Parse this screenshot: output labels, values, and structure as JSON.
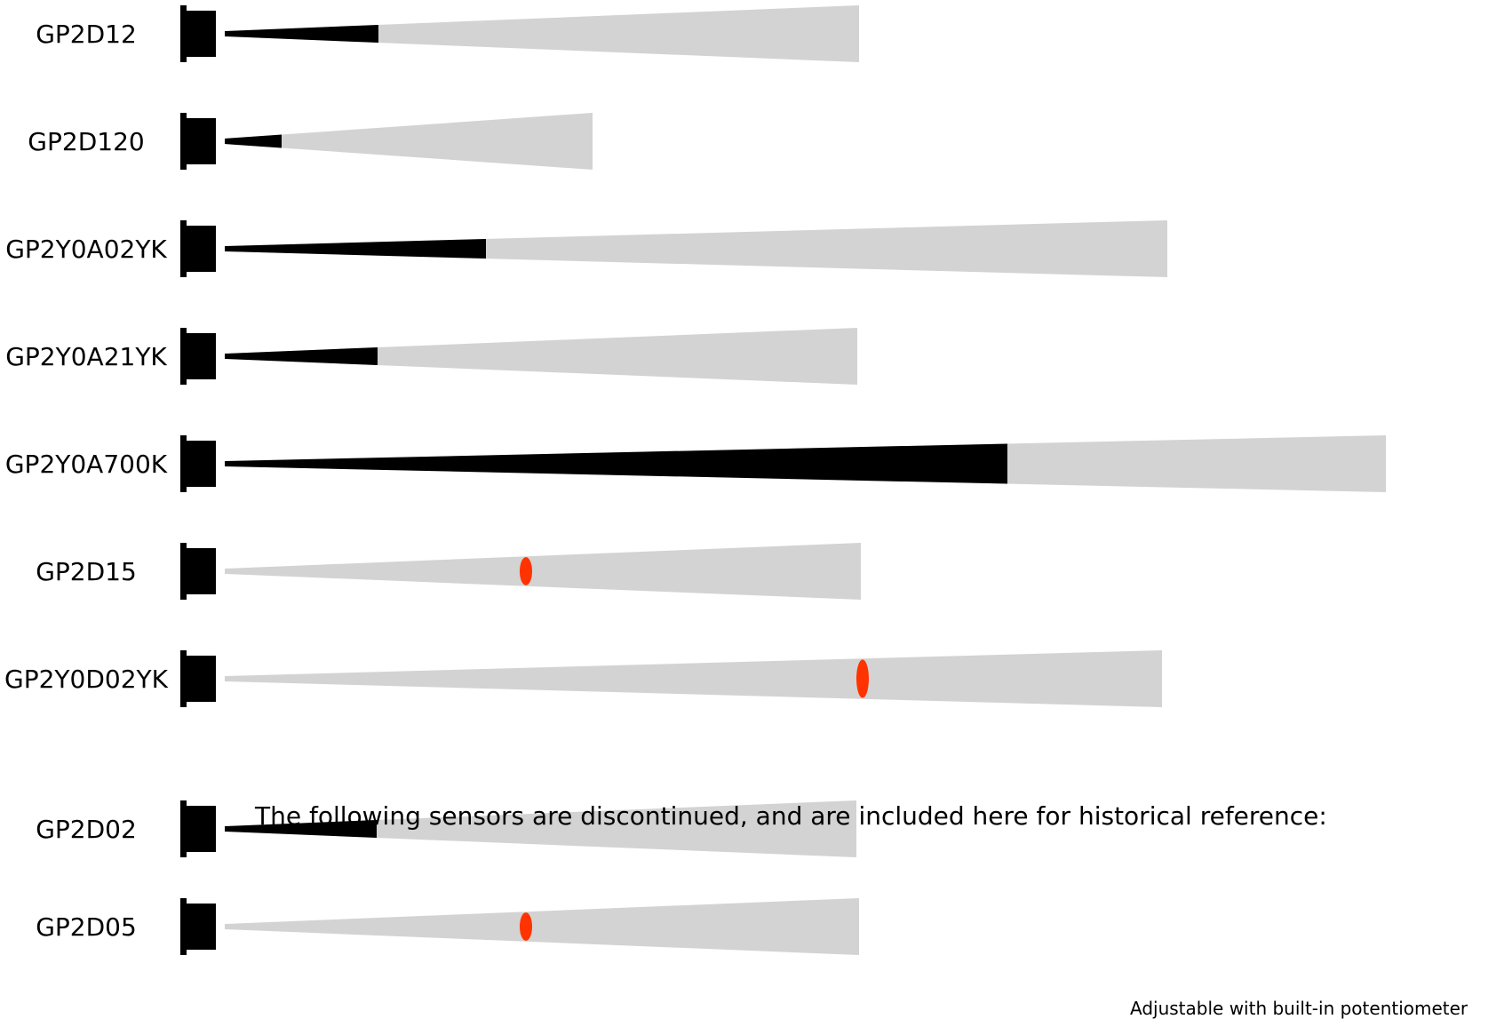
{
  "chart_data": {
    "type": "diagram",
    "title": "",
    "sensors": [
      {
        "name": "GP2D12",
        "beam_end": 967,
        "solid_end": 426,
        "red_marker": null
      },
      {
        "name": "GP2D120",
        "beam_end": 667,
        "solid_end": 317,
        "red_marker": null
      },
      {
        "name": "GP2Y0A02YK",
        "beam_end": 1314,
        "solid_end": 547,
        "red_marker": null
      },
      {
        "name": "GP2Y0A21YK",
        "beam_end": 965,
        "solid_end": 425,
        "red_marker": null
      },
      {
        "name": "GP2Y0A700K",
        "beam_end": 1560,
        "solid_end": 1134,
        "red_marker": null
      },
      {
        "name": "GP2D15",
        "beam_end": 969,
        "solid_end": null,
        "red_marker": 592
      },
      {
        "name": "GP2Y0D02YK",
        "beam_end": 1308,
        "solid_end": null,
        "red_marker": 971
      }
    ],
    "note": "The following sensors are discontinued, and are included here for historical reference:",
    "discontinued": [
      {
        "name": "GP2D02",
        "beam_end": 964,
        "solid_end": 424,
        "red_marker": null
      },
      {
        "name": "GP2D05",
        "beam_end": 967,
        "solid_end": null,
        "red_marker": 592
      }
    ],
    "footnote": "Adjustable with built-in potentiometer"
  },
  "colors": {
    "beam": "#d3d3d3",
    "solid": "#000000",
    "marker": "#ff3300"
  }
}
